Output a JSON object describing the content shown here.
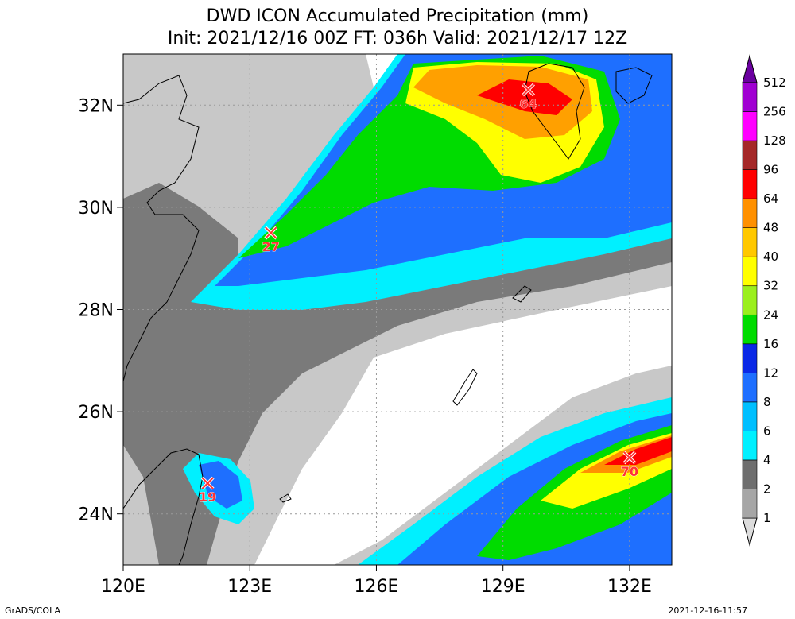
{
  "title_line1": "DWD ICON Accumulated Precipitation (mm)",
  "title_line2": "Init: 2021/12/16 00Z  FT: 036h  Valid: 2021/12/17 12Z",
  "x_ticks": [
    "120E",
    "123E",
    "126E",
    "129E",
    "132E"
  ],
  "y_ticks": [
    "32N",
    "30N",
    "28N",
    "26N",
    "24N"
  ],
  "lon_range": [
    120,
    133
  ],
  "lat_range": [
    23,
    33
  ],
  "colorbar": {
    "levels": [
      "1",
      "2",
      "4",
      "6",
      "8",
      "12",
      "16",
      "24",
      "32",
      "40",
      "48",
      "64",
      "96",
      "128",
      "256",
      "512"
    ],
    "colors": [
      "#dcdcdc",
      "#a6a6a6",
      "#6e6e6e",
      "#00f0ff",
      "#00bfff",
      "#1e6fff",
      "#0a28e6",
      "#00dc00",
      "#9bef1e",
      "#ffff00",
      "#ffc800",
      "#ff9000",
      "#ff0000",
      "#a52828",
      "#ff00ff",
      "#a000d2",
      "#6b00a0"
    ]
  },
  "maxima": [
    {
      "value": "64",
      "lon": 129.6,
      "lat": 32.3
    },
    {
      "value": "27",
      "lon": 123.5,
      "lat": 29.5
    },
    {
      "value": "19",
      "lon": 122.0,
      "lat": 24.6
    },
    {
      "value": "70",
      "lon": 132.0,
      "lat": 25.1
    }
  ],
  "footer_left": "GrADS/COLA",
  "footer_right": "2021-12-16-11:57"
}
